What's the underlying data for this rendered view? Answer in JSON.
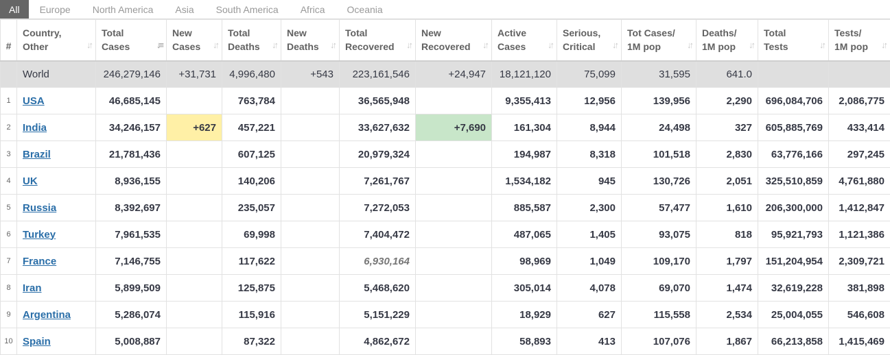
{
  "tabs": [
    "All",
    "Europe",
    "North America",
    "Asia",
    "South America",
    "Africa",
    "Oceania"
  ],
  "headers": [
    {
      "l1": "#",
      "l2": ""
    },
    {
      "l1": "Country,",
      "l2": "Other"
    },
    {
      "l1": "Total",
      "l2": "Cases"
    },
    {
      "l1": "New",
      "l2": "Cases"
    },
    {
      "l1": "Total",
      "l2": "Deaths"
    },
    {
      "l1": "New",
      "l2": "Deaths"
    },
    {
      "l1": "Total",
      "l2": "Recovered"
    },
    {
      "l1": "New",
      "l2": "Recovered"
    },
    {
      "l1": "Active",
      "l2": "Cases"
    },
    {
      "l1": "Serious,",
      "l2": "Critical"
    },
    {
      "l1": "Tot Cases/",
      "l2": "1M pop"
    },
    {
      "l1": "Deaths/",
      "l2": "1M pop"
    },
    {
      "l1": "Total",
      "l2": "Tests"
    },
    {
      "l1": "Tests/",
      "l2": "1M pop"
    }
  ],
  "world": {
    "num": "",
    "country": "World",
    "total_cases": "246,279,146",
    "new_cases": "+31,731",
    "total_deaths": "4,996,480",
    "new_deaths": "+543",
    "total_recovered": "223,161,546",
    "new_recovered": "+24,947",
    "active": "18,121,120",
    "serious": "75,099",
    "cases_1m": "31,595",
    "deaths_1m": "641.0",
    "total_tests": "",
    "tests_1m": ""
  },
  "rows": [
    {
      "num": "1",
      "country": "USA",
      "total_cases": "46,685,145",
      "new_cases": "",
      "total_deaths": "763,784",
      "new_deaths": "",
      "total_recovered": "36,565,948",
      "new_recovered": "",
      "active": "9,355,413",
      "serious": "12,956",
      "cases_1m": "139,956",
      "deaths_1m": "2,290",
      "total_tests": "696,084,706",
      "tests_1m": "2,086,775"
    },
    {
      "num": "2",
      "country": "India",
      "total_cases": "34,246,157",
      "new_cases": "+627",
      "total_deaths": "457,221",
      "new_deaths": "",
      "total_recovered": "33,627,632",
      "new_recovered": "+7,690",
      "active": "161,304",
      "serious": "8,944",
      "cases_1m": "24,498",
      "deaths_1m": "327",
      "total_tests": "605,885,769",
      "tests_1m": "433,414"
    },
    {
      "num": "3",
      "country": "Brazil",
      "total_cases": "21,781,436",
      "new_cases": "",
      "total_deaths": "607,125",
      "new_deaths": "",
      "total_recovered": "20,979,324",
      "new_recovered": "",
      "active": "194,987",
      "serious": "8,318",
      "cases_1m": "101,518",
      "deaths_1m": "2,830",
      "total_tests": "63,776,166",
      "tests_1m": "297,245"
    },
    {
      "num": "4",
      "country": "UK",
      "total_cases": "8,936,155",
      "new_cases": "",
      "total_deaths": "140,206",
      "new_deaths": "",
      "total_recovered": "7,261,767",
      "new_recovered": "",
      "active": "1,534,182",
      "serious": "945",
      "cases_1m": "130,726",
      "deaths_1m": "2,051",
      "total_tests": "325,510,859",
      "tests_1m": "4,761,880"
    },
    {
      "num": "5",
      "country": "Russia",
      "total_cases": "8,392,697",
      "new_cases": "",
      "total_deaths": "235,057",
      "new_deaths": "",
      "total_recovered": "7,272,053",
      "new_recovered": "",
      "active": "885,587",
      "serious": "2,300",
      "cases_1m": "57,477",
      "deaths_1m": "1,610",
      "total_tests": "206,300,000",
      "tests_1m": "1,412,847"
    },
    {
      "num": "6",
      "country": "Turkey",
      "total_cases": "7,961,535",
      "new_cases": "",
      "total_deaths": "69,998",
      "new_deaths": "",
      "total_recovered": "7,404,472",
      "new_recovered": "",
      "active": "487,065",
      "serious": "1,405",
      "cases_1m": "93,075",
      "deaths_1m": "818",
      "total_tests": "95,921,793",
      "tests_1m": "1,121,386"
    },
    {
      "num": "7",
      "country": "France",
      "total_cases": "7,146,755",
      "new_cases": "",
      "total_deaths": "117,622",
      "new_deaths": "",
      "total_recovered": "6,930,164",
      "new_recovered": "",
      "active": "98,969",
      "serious": "1,049",
      "cases_1m": "109,170",
      "deaths_1m": "1,797",
      "total_tests": "151,204,954",
      "tests_1m": "2,309,721"
    },
    {
      "num": "8",
      "country": "Iran",
      "total_cases": "5,899,509",
      "new_cases": "",
      "total_deaths": "125,875",
      "new_deaths": "",
      "total_recovered": "5,468,620",
      "new_recovered": "",
      "active": "305,014",
      "serious": "4,078",
      "cases_1m": "69,070",
      "deaths_1m": "1,474",
      "total_tests": "32,619,228",
      "tests_1m": "381,898"
    },
    {
      "num": "9",
      "country": "Argentina",
      "total_cases": "5,286,074",
      "new_cases": "",
      "total_deaths": "115,916",
      "new_deaths": "",
      "total_recovered": "5,151,229",
      "new_recovered": "",
      "active": "18,929",
      "serious": "627",
      "cases_1m": "115,558",
      "deaths_1m": "2,534",
      "total_tests": "25,004,055",
      "tests_1m": "546,608"
    },
    {
      "num": "10",
      "country": "Spain",
      "total_cases": "5,008,887",
      "new_cases": "",
      "total_deaths": "87,322",
      "new_deaths": "",
      "total_recovered": "4,862,672",
      "new_recovered": "",
      "active": "58,893",
      "serious": "413",
      "cases_1m": "107,076",
      "deaths_1m": "1,867",
      "total_tests": "66,213,858",
      "tests_1m": "1,415,469"
    }
  ],
  "icons": {
    "sort": "sort-icon",
    "sort_active": "sort-descending-icon"
  },
  "colors": {
    "new_cases_highlight": "#fff0a6",
    "new_recovered_highlight": "#c8e6c9",
    "link": "#2a6ea8",
    "world_row": "#dfdfdf"
  }
}
